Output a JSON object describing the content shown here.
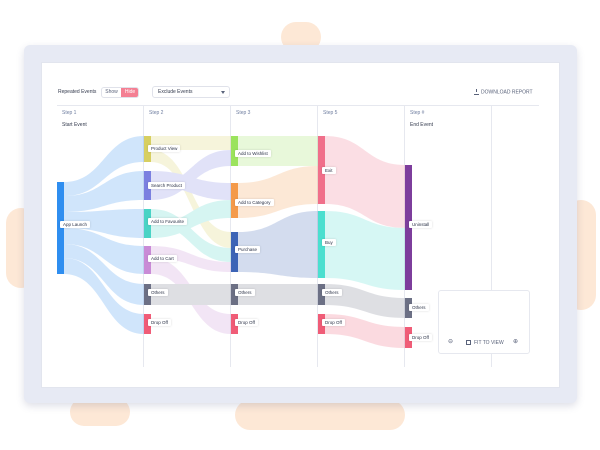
{
  "controls": {
    "repeated_events_label": "Repeated Events",
    "show_label": "Show",
    "hide_label": "Hide",
    "exclude_label": "Exclude Events",
    "download_label": "DOWNLOAD REPORT"
  },
  "steps": [
    {
      "title": "Step 1",
      "subtitle": "Start Event"
    },
    {
      "title": "Step 2",
      "subtitle": ""
    },
    {
      "title": "Step 3",
      "subtitle": ""
    },
    {
      "title": "Step 5",
      "subtitle": ""
    },
    {
      "title": "Step #",
      "subtitle": "End Event"
    }
  ],
  "nodes": {
    "app_launch": "App Launch",
    "product_view": "Product View",
    "search_product": "Search Product",
    "add_to_favourite": "Add to Favourite",
    "add_to_cart": "Add to Cart",
    "others_2": "Others",
    "drop_off_2": "Drop Off",
    "add_to_wishlist": "Add to Wishlist",
    "add_to_category": "Add to Category",
    "purchase": "Purchase",
    "others_3": "Others",
    "drop_off_3": "Drop Off",
    "exit": "Exit",
    "buy": "Buy",
    "others_5": "Others",
    "drop_off_5": "Drop Off",
    "uninstall": "Uninstall",
    "others_end": "Others",
    "drop_off_end": "Drop Off"
  },
  "zoom": {
    "fit_label": "FIT TO VIEW"
  },
  "colors": {
    "hide_active": "#f47f93",
    "app_launch": "#2f8ef0",
    "product_view": "#d7cf61",
    "search_product": "#7b80e0",
    "add_to_favourite": "#49d3c5",
    "add_to_cart": "#c98bd6",
    "others": "#6c7085",
    "drop_off": "#f05c77",
    "add_to_wishlist": "#9be35d",
    "add_to_category": "#f49a4a",
    "purchase": "#3c64b6",
    "exit": "#f06f8a",
    "buy": "#4bdfcf",
    "uninstall": "#7d3d9c"
  }
}
